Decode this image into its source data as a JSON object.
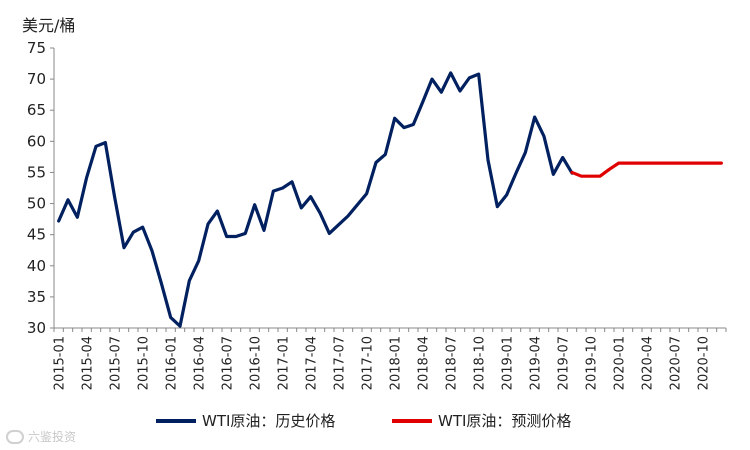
{
  "chart_data": {
    "type": "line",
    "ylabel": "美元/桶",
    "ylim": [
      30,
      75
    ],
    "yticks": [
      30,
      35,
      40,
      45,
      50,
      55,
      60,
      65,
      70,
      75
    ],
    "x_tick_labels": [
      "2015-01",
      "2015-04",
      "2015-07",
      "2015-10",
      "2016-01",
      "2016-04",
      "2016-07",
      "2016-10",
      "2017-01",
      "2017-04",
      "2017-07",
      "2017-10",
      "2018-01",
      "2018-04",
      "2018-07",
      "2018-10",
      "2019-01",
      "2019-04",
      "2019-07",
      "2019-10",
      "2020-01",
      "2020-04",
      "2020-07",
      "2020-10"
    ],
    "grid": false,
    "legend_position": "bottom",
    "series": [
      {
        "name": "WTI原油：历史价格",
        "color": "#002060",
        "x": [
          "2015-01",
          "2015-02",
          "2015-03",
          "2015-04",
          "2015-05",
          "2015-06",
          "2015-07",
          "2015-08",
          "2015-09",
          "2015-10",
          "2015-11",
          "2015-12",
          "2016-01",
          "2016-02",
          "2016-03",
          "2016-04",
          "2016-05",
          "2016-06",
          "2016-07",
          "2016-08",
          "2016-09",
          "2016-10",
          "2016-11",
          "2016-12",
          "2017-01",
          "2017-02",
          "2017-03",
          "2017-04",
          "2017-05",
          "2017-06",
          "2017-07",
          "2017-08",
          "2017-09",
          "2017-10",
          "2017-11",
          "2017-12",
          "2018-01",
          "2018-02",
          "2018-03",
          "2018-04",
          "2018-05",
          "2018-06",
          "2018-07",
          "2018-08",
          "2018-09",
          "2018-10",
          "2018-11",
          "2018-12",
          "2019-01",
          "2019-02",
          "2019-03",
          "2019-04",
          "2019-05",
          "2019-06",
          "2019-07",
          "2019-08"
        ],
        "values": [
          47.2,
          50.6,
          47.8,
          54.2,
          59.2,
          59.8,
          51.0,
          42.9,
          45.4,
          46.2,
          42.4,
          37.2,
          31.7,
          30.3,
          37.6,
          40.8,
          46.7,
          48.8,
          44.7,
          44.7,
          45.2,
          49.8,
          45.7,
          52.0,
          52.5,
          53.5,
          49.3,
          51.1,
          48.5,
          45.2,
          46.6,
          48.0,
          49.8,
          51.6,
          56.6,
          57.9,
          63.7,
          62.2,
          62.7,
          66.3,
          70.0,
          67.9,
          71.0,
          68.1,
          70.2,
          70.8,
          57.0,
          49.5,
          51.4,
          54.9,
          58.2,
          63.9,
          60.8,
          54.7,
          57.4,
          54.9
        ]
      },
      {
        "name": "WTI原油：预测价格",
        "color": "#e00000",
        "x": [
          "2019-08",
          "2019-09",
          "2019-10",
          "2019-11",
          "2019-12",
          "2020-01",
          "2020-02",
          "2020-03",
          "2020-04",
          "2020-05",
          "2020-06",
          "2020-07",
          "2020-08",
          "2020-09",
          "2020-10",
          "2020-11",
          "2020-12"
        ],
        "values": [
          55.0,
          54.4,
          54.4,
          54.4,
          55.5,
          56.5,
          56.5,
          56.5,
          56.5,
          56.5,
          56.5,
          56.5,
          56.5,
          56.5,
          56.5,
          56.5,
          56.5
        ]
      }
    ]
  },
  "watermark": "六鉴投资"
}
